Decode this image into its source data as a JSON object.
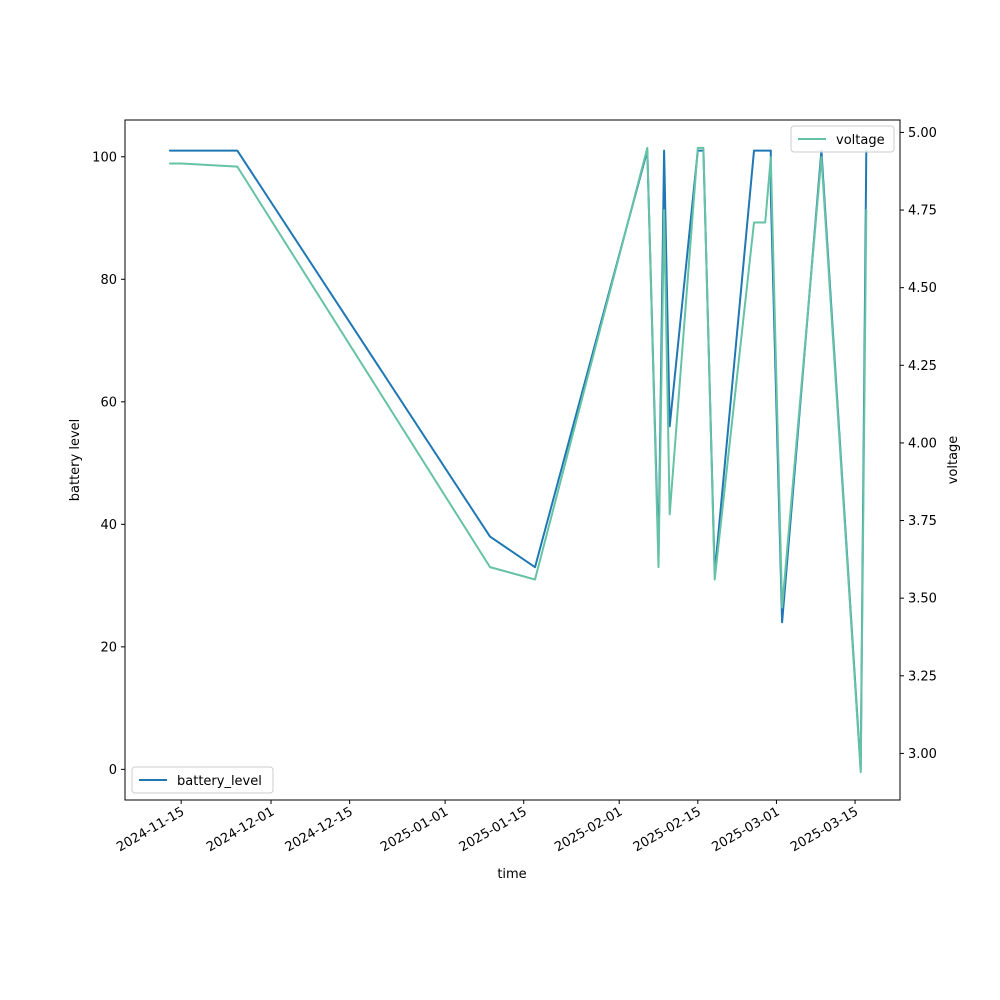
{
  "chart_data": {
    "type": "line",
    "xlabel": "time",
    "ylabel_left": "battery level",
    "ylabel_right": "voltage",
    "x_ticks": [
      "2024-11-15",
      "2024-12-01",
      "2024-12-15",
      "2025-01-01",
      "2025-01-15",
      "2025-02-01",
      "2025-02-15",
      "2025-03-01",
      "2025-03-15"
    ],
    "xlim": [
      "2024-11-05",
      "2025-03-23"
    ],
    "y_left_ticks": [
      0,
      20,
      40,
      60,
      80,
      100
    ],
    "y_left_lim": [
      -5,
      106
    ],
    "y_right_ticks": [
      3.0,
      3.25,
      3.5,
      3.75,
      4.0,
      4.25,
      4.5,
      4.75,
      5.0
    ],
    "y_right_tick_labels": [
      "3.00",
      "3.25",
      "3.50",
      "3.75",
      "4.00",
      "4.25",
      "4.50",
      "4.75",
      "5.00"
    ],
    "y_right_lim": [
      2.85,
      5.04
    ],
    "grid": false,
    "series": [
      {
        "name": "battery_level",
        "axis": "left",
        "color": "#1f77b4",
        "legend_location": "lower-left",
        "points": [
          [
            "2024-11-13",
            101
          ],
          [
            "2024-11-25",
            101
          ],
          [
            "2025-01-09",
            38
          ],
          [
            "2025-01-17",
            33
          ],
          [
            "2025-02-06",
            101
          ],
          [
            "2025-02-08",
            35
          ],
          [
            "2025-02-09",
            101
          ],
          [
            "2025-02-10",
            56
          ],
          [
            "2025-02-15",
            101
          ],
          [
            "2025-02-16",
            101
          ],
          [
            "2025-02-18",
            32
          ],
          [
            "2025-02-25",
            101
          ],
          [
            "2025-02-28",
            101
          ],
          [
            "2025-02-28",
            94
          ],
          [
            "2025-03-02",
            24
          ],
          [
            "2025-03-09",
            101
          ],
          [
            "2025-03-16",
            0
          ],
          [
            "2025-03-17",
            101
          ]
        ]
      },
      {
        "name": "voltage",
        "axis": "right",
        "color": "#66c2a5",
        "legend_location": "upper-right",
        "points": [
          [
            "2024-11-13",
            4.9
          ],
          [
            "2024-11-15",
            4.9
          ],
          [
            "2024-11-25",
            4.89
          ],
          [
            "2025-01-09",
            3.6
          ],
          [
            "2025-01-17",
            3.56
          ],
          [
            "2025-02-06",
            4.95
          ],
          [
            "2025-02-08",
            3.6
          ],
          [
            "2025-02-09",
            4.75
          ],
          [
            "2025-02-10",
            3.77
          ],
          [
            "2025-02-15",
            4.95
          ],
          [
            "2025-02-16",
            4.95
          ],
          [
            "2025-02-18",
            3.56
          ],
          [
            "2025-02-25",
            4.71
          ],
          [
            "2025-02-27",
            4.71
          ],
          [
            "2025-02-28",
            4.92
          ],
          [
            "2025-03-02",
            3.47
          ],
          [
            "2025-03-09",
            4.92
          ],
          [
            "2025-03-16",
            2.94
          ],
          [
            "2025-03-17",
            4.75
          ]
        ]
      }
    ]
  }
}
